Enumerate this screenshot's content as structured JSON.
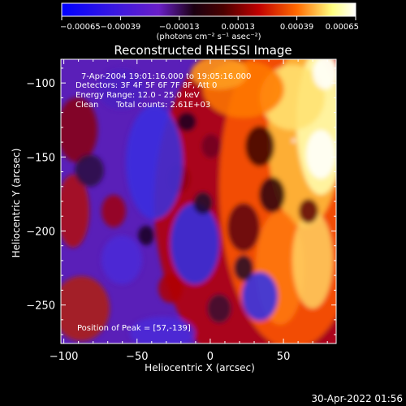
{
  "chart_data": {
    "type": "heatmap",
    "title": "Reconstructed RHESSI Image",
    "xlabel": "Heliocentric X (arcsec)",
    "ylabel": "Heliocentric Y (arcsec)",
    "xlim": [
      -102,
      86
    ],
    "ylim": [
      -276,
      -84
    ],
    "xticks": [
      -100,
      -50,
      0,
      50
    ],
    "yticks": [
      -100,
      -150,
      -200,
      -250
    ],
    "xtick_labels": [
      "−100",
      "−50",
      "0",
      "50"
    ],
    "ytick_labels": [
      "−100",
      "−150",
      "−200",
      "−250"
    ],
    "colorbar": {
      "range": [
        -0.00065,
        0.00065
      ],
      "ticks": [
        -0.00065,
        -0.00039,
        -0.00013,
        0.00013,
        0.00039,
        0.00065
      ],
      "tick_labels": [
        "−0.00065",
        "−0.00039",
        "−0.00013",
        "0.00013",
        "0.00039",
        "0.00065"
      ],
      "unit_label": "(photons cm⁻² s⁻¹ asec⁻²)",
      "colors": [
        "#0000ff",
        "#6a1fc8",
        "#1a0010",
        "#c00000",
        "#ff6a00",
        "#ffff80",
        "#ffffff"
      ]
    },
    "annotations": {
      "time": "7-Apr-2004 19:01:16.000 to 19:05:16.000",
      "detectors": "Detectors: 3F 4F 5F 6F 7F 8F, Att 0",
      "energy": "Energy Range: 12.0 - 25.0 keV",
      "clean": "Clean",
      "counts": "Total counts: 2.61E+03",
      "peak": "Position of Peak = [57,-139]"
    },
    "peak": [
      57,
      -139
    ],
    "grid": false
  },
  "footer": {
    "timestamp": "30-Apr-2022 01:56"
  }
}
